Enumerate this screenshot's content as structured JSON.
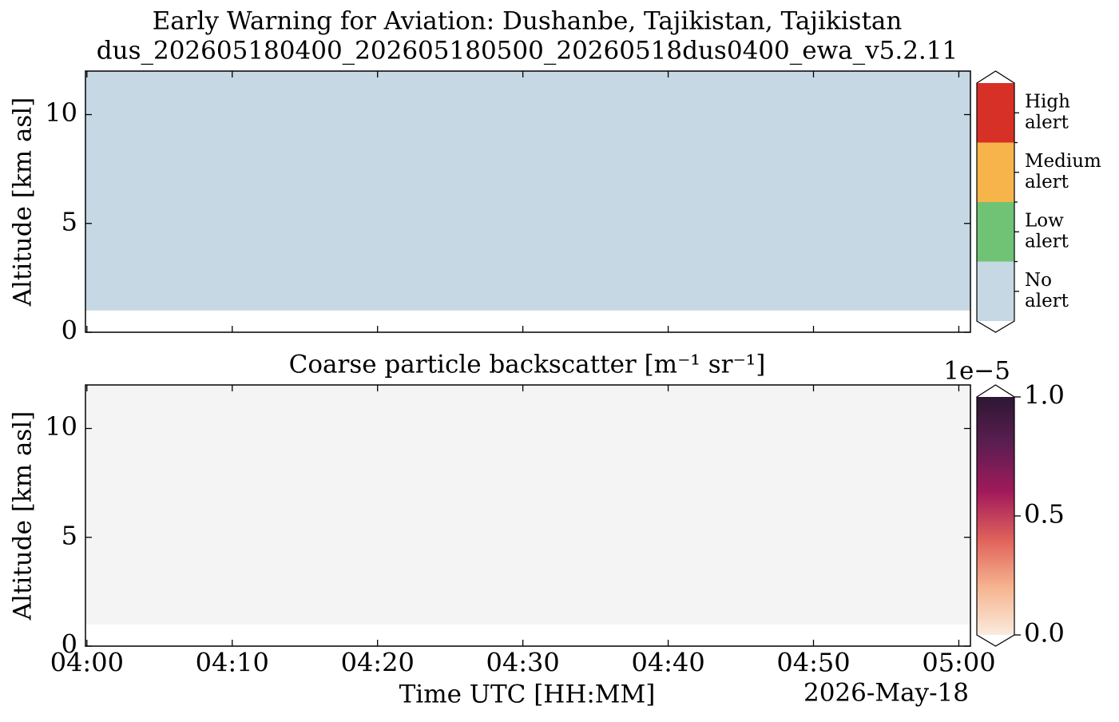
{
  "chart_data": [
    {
      "type": "heatmap",
      "title": "Early Warning for Aviation: Dushanbe, Tajikistan, Tajikistan",
      "subtitle": "dus_202605180400_202605180500_20260518dus0400_ewa_v5.2.11",
      "ylabel": "Altitude [km asl]",
      "xlim": [
        -0.1,
        60.8
      ],
      "xticks": [
        0,
        10,
        20,
        30,
        40,
        50,
        60
      ],
      "ylim": [
        0,
        12
      ],
      "yticks": [
        0,
        5,
        10
      ],
      "field": {
        "x": [
          -0.1,
          60.8
        ],
        "y": [
          1,
          12
        ],
        "color": "#c5d8e3"
      },
      "colorbar": {
        "kind": "categorical",
        "categories": [
          "No alert",
          "Low alert",
          "Medium alert",
          "High alert"
        ],
        "colors": [
          "#c5d8e3",
          "#70c374",
          "#f6b44a",
          "#d73027"
        ]
      }
    },
    {
      "type": "heatmap",
      "title": "Coarse particle backscatter [m⁻¹ sr⁻¹]",
      "ylabel": "Altitude [km asl]",
      "xlabel": "Time UTC [HH:MM]",
      "date": "2026-May-18",
      "xlim": [
        -0.1,
        60.8
      ],
      "xticks": [
        {
          "value": 0,
          "label": "04:00"
        },
        {
          "value": 10,
          "label": "04:10"
        },
        {
          "value": 20,
          "label": "04:20"
        },
        {
          "value": 30,
          "label": "04:30"
        },
        {
          "value": 40,
          "label": "04:40"
        },
        {
          "value": 50,
          "label": "04:50"
        },
        {
          "value": 60,
          "label": "05:00"
        }
      ],
      "ylim": [
        0,
        12
      ],
      "yticks": [
        0,
        5,
        10
      ],
      "field": {
        "x": [
          -0.1,
          60.8
        ],
        "y": [
          1,
          12
        ],
        "color": "#f4f4f4"
      },
      "colorbar": {
        "kind": "continuous",
        "lim": [
          0,
          1
        ],
        "multiplier": "1e−5",
        "ticks": [
          {
            "value": 0,
            "label": "0.0"
          },
          {
            "value": 0.5,
            "label": "0.5"
          },
          {
            "value": 1,
            "label": "1.0"
          }
        ],
        "colors": [
          "#faebdd",
          "#f6b48f",
          "#e0625b",
          "#a11a5b",
          "#5c1e51",
          "#2d1733"
        ]
      }
    }
  ]
}
